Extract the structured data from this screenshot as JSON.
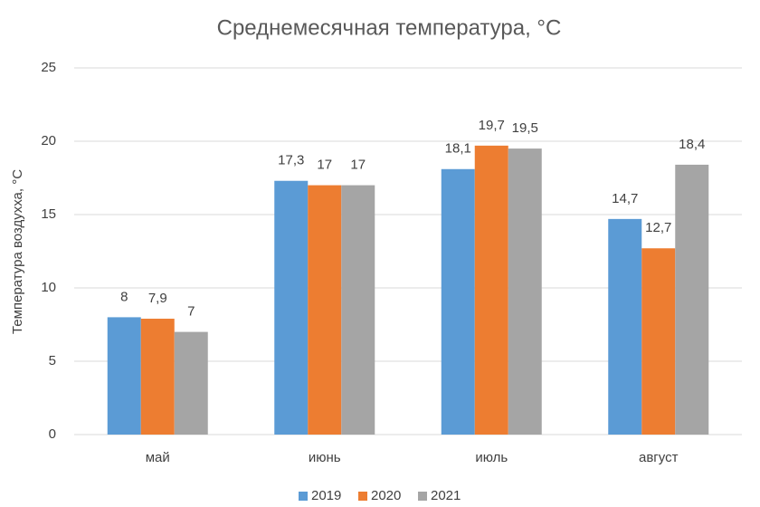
{
  "chart_data": {
    "type": "bar",
    "title": "Среднемесячная температура, °C",
    "y_label": "Температура воздухха, °C",
    "categories": [
      "май",
      "июнь",
      "июль",
      "август"
    ],
    "series": [
      {
        "name": "2019",
        "color": "#5b9bd5",
        "values": [
          8,
          17.3,
          18.1,
          14.7
        ],
        "value_labels": [
          "8",
          "17,3",
          "18,1",
          "14,7"
        ]
      },
      {
        "name": "2020",
        "color": "#ed7d31",
        "values": [
          7.9,
          17,
          19.7,
          12.7
        ],
        "value_labels": [
          "7,9",
          "17",
          "19,7",
          "12,7"
        ]
      },
      {
        "name": "2021",
        "color": "#a5a5a5",
        "values": [
          7,
          17,
          19.5,
          18.4
        ],
        "value_labels": [
          "7",
          "17",
          "19,5",
          "18,4"
        ]
      }
    ],
    "ylim": [
      0,
      25
    ],
    "yticks": [
      0,
      5,
      10,
      15,
      20,
      25
    ],
    "grid": true,
    "legend": "bottom"
  }
}
